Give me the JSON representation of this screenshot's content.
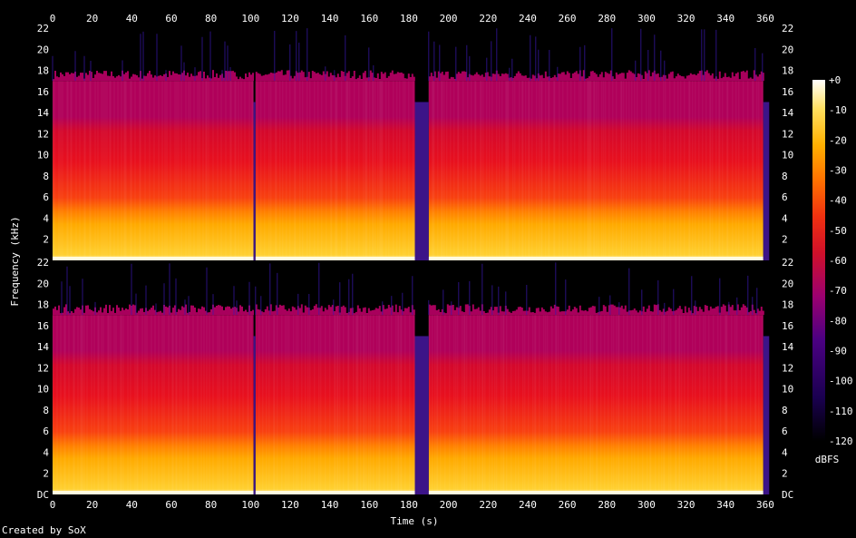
{
  "chart_data": {
    "type": "heatmap",
    "subtype": "spectrogram",
    "channels": 2,
    "xlabel": "Time (s)",
    "ylabel": "Frequency (kHz)",
    "colorbar_label": "dBFS",
    "xlim": [
      0,
      366
    ],
    "ylim_khz": [
      0,
      22
    ],
    "x_ticks": [
      0,
      20,
      40,
      60,
      80,
      100,
      120,
      140,
      160,
      180,
      200,
      220,
      240,
      260,
      280,
      300,
      320,
      340,
      360
    ],
    "y_tick_labels": [
      "DC",
      "2",
      "4",
      "6",
      "8",
      "10",
      "12",
      "14",
      "16",
      "18",
      "20",
      "22"
    ],
    "colorbar_ticks": [
      "+0",
      "-10",
      "-20",
      "-30",
      "-40",
      "-50",
      "-60",
      "-70",
      "-80",
      "-90",
      "-100",
      "-110",
      "-120"
    ],
    "colorbar_range_dbfs": [
      -120,
      0
    ],
    "colormap": [
      "#000000",
      "#1a0050",
      "#4b0082",
      "#9b0070",
      "#d0102a",
      "#f03010",
      "#ff7000",
      "#ffb000",
      "#ffe060",
      "#ffffff"
    ],
    "content_cutoff_khz": 17,
    "gaps_s": [
      [
        101.5,
        102.5
      ],
      [
        183,
        190
      ],
      [
        359,
        362
      ]
    ],
    "loud_segments_s": [
      [
        0,
        101.5
      ],
      [
        102.5,
        183
      ],
      [
        190,
        359
      ]
    ]
  },
  "credit": "Created by SoX"
}
